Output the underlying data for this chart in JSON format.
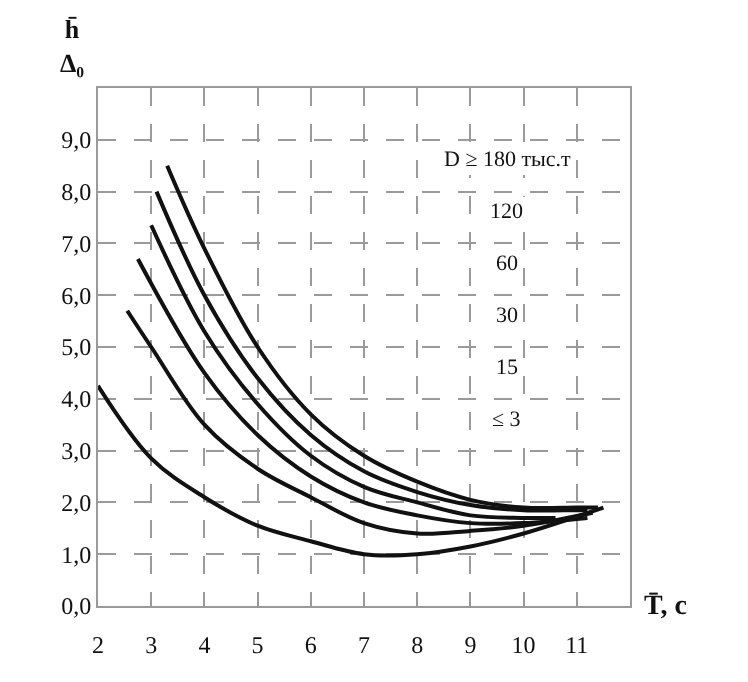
{
  "chart_data": {
    "type": "line",
    "xlabel": "T̄, c",
    "ylabel": "h̄\nΔ₀",
    "xlim": [
      2,
      12
    ],
    "xticks": [
      2,
      3,
      4,
      5,
      6,
      7,
      8,
      9,
      10,
      11
    ],
    "ylim": [
      0,
      10
    ],
    "yticks": [
      {
        "value": 0,
        "label": "0,0"
      },
      {
        "value": 1,
        "label": "1,0"
      },
      {
        "value": 2,
        "label": "2,0"
      },
      {
        "value": 3,
        "label": "3,0"
      },
      {
        "value": 4,
        "label": "4,0"
      },
      {
        "value": 5,
        "label": "5,0"
      },
      {
        "value": 6,
        "label": "6,0"
      },
      {
        "value": 7,
        "label": "7,0"
      },
      {
        "value": 8,
        "label": "8,0"
      },
      {
        "value": 9,
        "label": "9,0"
      }
    ],
    "annotations": [
      "D ≥ 180 тыс.т",
      "120",
      "60",
      "30",
      "15",
      "≤ 3"
    ],
    "grid": true,
    "legend": false,
    "marker": "none",
    "line_style": "solid",
    "series": [
      {
        "color": "#111111",
        "x": [
          3.3,
          4,
          5,
          6,
          7,
          8,
          9,
          10,
          11,
          11.4
        ],
        "values": [
          8.5,
          6.9,
          5.0,
          3.7,
          2.9,
          2.4,
          2.05,
          1.9,
          1.9,
          1.9
        ]
      },
      {
        "color": "#111111",
        "x": [
          3.1,
          4,
          5,
          6,
          7,
          8,
          9,
          10,
          11,
          11.2
        ],
        "values": [
          8.0,
          6.0,
          4.4,
          3.3,
          2.6,
          2.2,
          1.95,
          1.85,
          1.85,
          1.85
        ]
      },
      {
        "color": "#111111",
        "x": [
          3.0,
          4,
          5,
          6,
          7,
          8,
          9,
          10,
          10.6
        ],
        "values": [
          7.35,
          5.3,
          3.9,
          2.9,
          2.3,
          2.0,
          1.75,
          1.7,
          1.7
        ]
      },
      {
        "color": "#111111",
        "x": [
          2.75,
          4,
          5,
          6,
          7,
          8,
          9,
          10,
          11.2
        ],
        "values": [
          6.7,
          4.5,
          3.3,
          2.5,
          2.0,
          1.75,
          1.6,
          1.6,
          1.7
        ]
      },
      {
        "color": "#111111",
        "x": [
          2.55,
          3,
          4,
          5,
          6,
          7,
          8,
          9,
          10,
          11.3
        ],
        "values": [
          5.7,
          5.0,
          3.5,
          2.65,
          2.1,
          1.6,
          1.4,
          1.45,
          1.55,
          1.8
        ]
      },
      {
        "color": "#111111",
        "x": [
          2,
          3,
          4,
          5,
          6,
          7,
          8,
          9,
          10,
          11.5
        ],
        "values": [
          4.25,
          2.85,
          2.1,
          1.55,
          1.25,
          1.0,
          1.0,
          1.15,
          1.4,
          1.9
        ]
      }
    ]
  }
}
